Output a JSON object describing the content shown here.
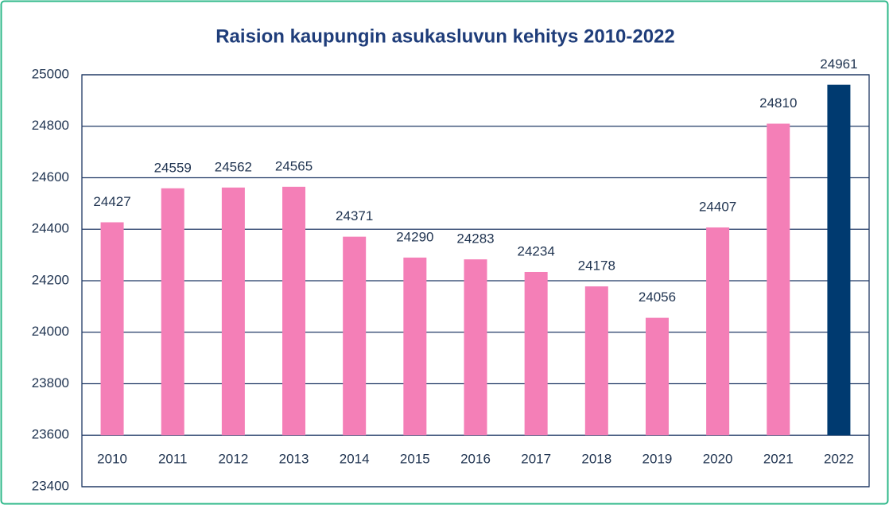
{
  "chart_data": {
    "type": "bar",
    "title": "Raision kaupungin asukasluvun kehitys 2010-2022",
    "categories": [
      "2010",
      "2011",
      "2012",
      "2013",
      "2014",
      "2015",
      "2016",
      "2017",
      "2018",
      "2019",
      "2020",
      "2021",
      "2022"
    ],
    "values": [
      24427,
      24559,
      24562,
      24565,
      24371,
      24290,
      24283,
      24234,
      24178,
      24056,
      24407,
      24810,
      24961
    ],
    "colors": [
      "#f47fb7",
      "#f47fb7",
      "#f47fb7",
      "#f47fb7",
      "#f47fb7",
      "#f47fb7",
      "#f47fb7",
      "#f47fb7",
      "#f47fb7",
      "#f47fb7",
      "#f47fb7",
      "#f47fb7",
      "#003a70"
    ],
    "ylim": [
      23400,
      25000
    ],
    "yticks": [
      23400,
      23600,
      23800,
      24000,
      24200,
      24400,
      24600,
      24800,
      25000
    ],
    "baseline": 23600,
    "grid": true
  }
}
